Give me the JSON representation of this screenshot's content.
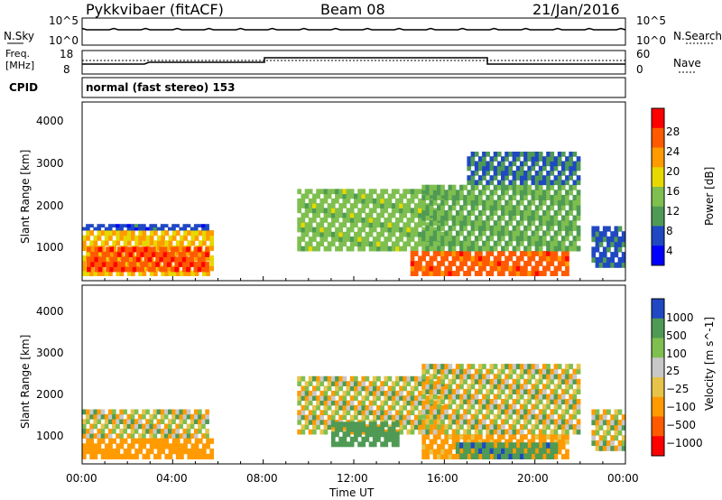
{
  "header": {
    "radar": "Pykkvibaer (fitACF)",
    "beam": "Beam 08",
    "date": "21/Jan/2016"
  },
  "nsky_panel": {
    "left_label": "N.Sky",
    "right_label": "N.Search",
    "left_ticks": [
      "10^5",
      "10^0"
    ],
    "right_ticks": [
      "10^5",
      "10^0"
    ],
    "description_values": {
      "scale": "log",
      "typical_level_exp": 3.2
    }
  },
  "freq_panel": {
    "left_label_1": "Freq.",
    "left_label_2": "[MHz]",
    "right_label": "Nave",
    "left_ticks": [
      "18",
      "8"
    ],
    "right_ticks": [
      "60",
      "0"
    ]
  },
  "cpid": {
    "label": "CPID",
    "text": "normal (fast stereo) 153"
  },
  "colors": {
    "power_scale": [
      "#0000ff",
      "#1f48c2",
      "#4f9a54",
      "#7fbf4f",
      "#e6d800",
      "#ff9a00",
      "#ff5a00",
      "#ff0000"
    ],
    "velocity_scale": [
      "#ff0000",
      "#ff5a00",
      "#ff9a00",
      "#e6c34a",
      "#c8c8c8",
      "#7fbf4f",
      "#4f9a54",
      "#1f48c2"
    ]
  },
  "chart_data": [
    {
      "type": "heatmap",
      "panel": "power",
      "ylabel": "Slant Range [km]",
      "yticks": [
        "4000",
        "3000",
        "2000",
        "1000"
      ],
      "ylim": [
        180,
        4500
      ],
      "xlim_hours": [
        0,
        24
      ],
      "colorbar_label": "Power [dB]",
      "colorbar_ticks": [
        "28",
        "24",
        "20",
        "16",
        "12",
        "8",
        "4"
      ],
      "clim": [
        0,
        32
      ],
      "regions": [
        {
          "t0": 0.0,
          "t1": 5.8,
          "r0": 300,
          "r1": 1400,
          "value": 20
        },
        {
          "t0": 0.2,
          "t1": 5.6,
          "r0": 400,
          "r1": 1000,
          "value": 27
        },
        {
          "t0": 0.0,
          "t1": 5.6,
          "r0": 1400,
          "r1": 1550,
          "value": 6
        },
        {
          "t0": 9.5,
          "t1": 16.0,
          "r0": 900,
          "r1": 2400,
          "value": 14
        },
        {
          "t0": 14.5,
          "t1": 21.5,
          "r0": 300,
          "r1": 900,
          "value": 26
        },
        {
          "t0": 15.0,
          "t1": 22.0,
          "r0": 900,
          "r1": 2500,
          "value": 12
        },
        {
          "t0": 17.0,
          "t1": 22.0,
          "r0": 2500,
          "r1": 3300,
          "value": 8
        },
        {
          "t0": 22.5,
          "t1": 24.0,
          "r0": 500,
          "r1": 1500,
          "value": 7
        }
      ]
    },
    {
      "type": "heatmap",
      "panel": "velocity",
      "ylabel": "Slant Range [km]",
      "yticks": [
        "4000",
        "3000",
        "2000",
        "1000"
      ],
      "ylim": [
        180,
        4500
      ],
      "xlim_hours": [
        0,
        24
      ],
      "colorbar_label": "Velocity [m s^-1]",
      "colorbar_ticks": [
        "1000",
        "500",
        "100",
        "25",
        "−25",
        "−100",
        "−500",
        "−1000"
      ],
      "clim": [
        -1200,
        1200
      ],
      "regions": [
        {
          "t0": 0.0,
          "t1": 5.6,
          "r0": 800,
          "r1": 1500,
          "value": 0
        },
        {
          "t0": 0.0,
          "t1": 5.8,
          "r0": 300,
          "r1": 800,
          "value": -300
        },
        {
          "t0": 9.5,
          "t1": 16.0,
          "r0": 900,
          "r1": 2300,
          "value": 0
        },
        {
          "t0": 11.0,
          "t1": 14.0,
          "r0": 600,
          "r1": 1200,
          "value": 300
        },
        {
          "t0": 15.0,
          "t1": 21.5,
          "r0": 300,
          "r1": 900,
          "value": -200
        },
        {
          "t0": 16.5,
          "t1": 21.0,
          "r0": 300,
          "r1": 700,
          "value": 400
        },
        {
          "t0": 15.0,
          "t1": 22.0,
          "r0": 900,
          "r1": 2600,
          "value": 0
        },
        {
          "t0": 22.5,
          "t1": 24.0,
          "r0": 500,
          "r1": 1500,
          "value": 0
        }
      ]
    }
  ],
  "xaxis": {
    "ticks": [
      "00:00",
      "04:00",
      "08:00",
      "12:00",
      "16:00",
      "20:00",
      "00:00"
    ],
    "label": "Time UT"
  }
}
